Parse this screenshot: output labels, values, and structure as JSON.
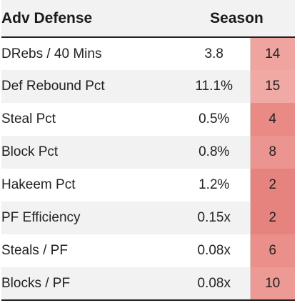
{
  "header": {
    "label": "Adv Defense",
    "season": "Season"
  },
  "rows": [
    {
      "label": "DRebs / 40 Mins",
      "value": "3.8",
      "rank": "14",
      "rank_color": "#efa49f"
    },
    {
      "label": "Def Rebound Pct",
      "value": "11.1%",
      "rank": "15",
      "rank_color": "#f0a9a4"
    },
    {
      "label": "Steal Pct",
      "value": "0.5%",
      "rank": "4",
      "rank_color": "#e98a85"
    },
    {
      "label": "Block Pct",
      "value": "0.8%",
      "rank": "8",
      "rank_color": "#ec948f"
    },
    {
      "label": "Hakeem Pct",
      "value": "1.2%",
      "rank": "2",
      "rank_color": "#e7837e"
    },
    {
      "label": "PF Efficiency",
      "value": "0.15x",
      "rank": "2",
      "rank_color": "#e7837e"
    },
    {
      "label": "Steals / PF",
      "value": "0.08x",
      "rank": "6",
      "rank_color": "#ea8f8a"
    },
    {
      "label": "Blocks / PF",
      "value": "0.08x",
      "rank": "10",
      "rank_color": "#ed9a95"
    }
  ]
}
